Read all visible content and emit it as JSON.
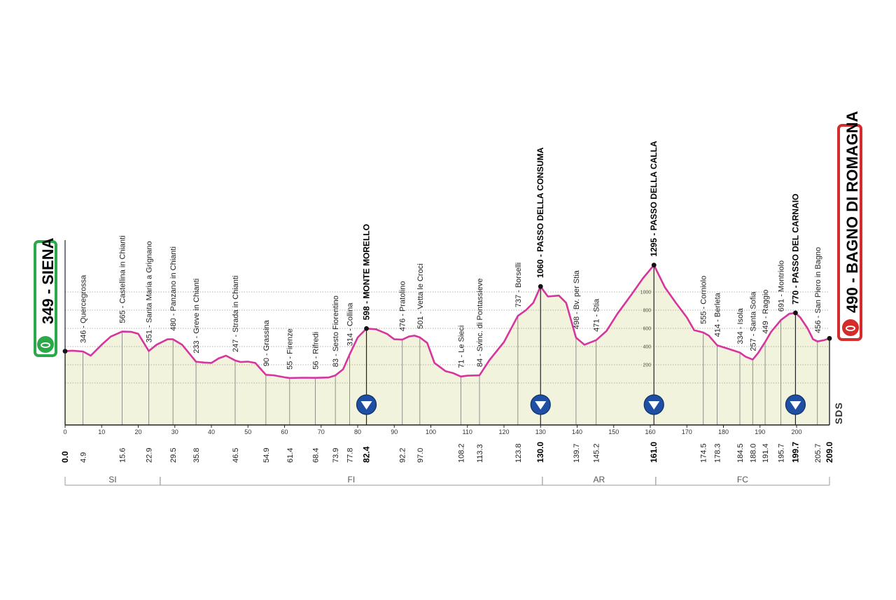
{
  "chart_data": {
    "type": "area",
    "xlim": [
      0,
      209
    ],
    "ylim": [
      0,
      1600
    ],
    "axis_ticks": [
      0,
      10,
      20,
      30,
      40,
      50,
      60,
      70,
      80,
      90,
      100,
      110,
      120,
      130,
      140,
      150,
      160,
      170,
      180,
      190,
      200
    ],
    "altitude_ticks": [
      0,
      200,
      400,
      600,
      800,
      1000
    ],
    "grid": true,
    "fill_color": "#f2f3dc",
    "line_color": "#d7359e",
    "profile": [
      [
        0,
        349
      ],
      [
        2,
        355
      ],
      [
        4.9,
        346
      ],
      [
        7,
        300
      ],
      [
        10,
        420
      ],
      [
        12.5,
        510
      ],
      [
        15.6,
        565
      ],
      [
        18,
        562
      ],
      [
        20,
        540
      ],
      [
        22.9,
        351
      ],
      [
        25,
        420
      ],
      [
        28,
        480
      ],
      [
        29.5,
        480
      ],
      [
        32,
        420
      ],
      [
        35.8,
        233
      ],
      [
        38,
        225
      ],
      [
        40,
        220
      ],
      [
        42,
        270
      ],
      [
        44,
        300
      ],
      [
        46.5,
        247
      ],
      [
        48,
        230
      ],
      [
        50,
        235
      ],
      [
        52,
        220
      ],
      [
        54.9,
        90
      ],
      [
        57,
        85
      ],
      [
        60,
        62
      ],
      [
        61.4,
        55
      ],
      [
        65,
        58
      ],
      [
        68.4,
        56
      ],
      [
        72,
        60
      ],
      [
        73.9,
        83
      ],
      [
        76,
        150
      ],
      [
        77.8,
        314
      ],
      [
        80,
        500
      ],
      [
        82.4,
        598
      ],
      [
        85,
        590
      ],
      [
        88,
        540
      ],
      [
        90,
        480
      ],
      [
        92.2,
        476
      ],
      [
        94,
        510
      ],
      [
        95.5,
        520
      ],
      [
        97,
        501
      ],
      [
        99,
        440
      ],
      [
        101,
        220
      ],
      [
        104,
        130
      ],
      [
        106,
        110
      ],
      [
        108.2,
        71
      ],
      [
        110,
        80
      ],
      [
        113.3,
        84
      ],
      [
        116,
        250
      ],
      [
        120,
        450
      ],
      [
        123.8,
        737
      ],
      [
        126,
        800
      ],
      [
        128,
        880
      ],
      [
        130,
        1060
      ],
      [
        132,
        950
      ],
      [
        135,
        960
      ],
      [
        137,
        880
      ],
      [
        139.7,
        498
      ],
      [
        142,
        420
      ],
      [
        145.2,
        471
      ],
      [
        148,
        570
      ],
      [
        151,
        760
      ],
      [
        155,
        980
      ],
      [
        158,
        1150
      ],
      [
        161,
        1295
      ],
      [
        164,
        1050
      ],
      [
        167,
        880
      ],
      [
        170,
        720
      ],
      [
        172,
        580
      ],
      [
        174.5,
        555
      ],
      [
        176,
        520
      ],
      [
        178.3,
        414
      ],
      [
        181,
        380
      ],
      [
        184.5,
        334
      ],
      [
        186,
        290
      ],
      [
        188,
        257
      ],
      [
        189.5,
        330
      ],
      [
        191.4,
        449
      ],
      [
        193,
        560
      ],
      [
        195.7,
        691
      ],
      [
        198,
        760
      ],
      [
        199.7,
        770
      ],
      [
        201,
        720
      ],
      [
        203,
        600
      ],
      [
        204.5,
        480
      ],
      [
        205.7,
        456
      ],
      [
        207.5,
        470
      ],
      [
        209,
        490
      ]
    ],
    "points": [
      {
        "km": 0.0,
        "km_label": "0.0",
        "alt": 349,
        "label": "",
        "major": true
      },
      {
        "km": 4.9,
        "km_label": "4.9",
        "alt": 346,
        "label": "346 - Quercegrossa",
        "major": false
      },
      {
        "km": 15.6,
        "km_label": "15.6",
        "alt": 565,
        "label": "565 - Castellina in Chianti",
        "major": false
      },
      {
        "km": 22.9,
        "km_label": "22.9",
        "alt": 351,
        "label": "351 - Santa Maria a Grignano",
        "major": false
      },
      {
        "km": 29.5,
        "km_label": "29.5",
        "alt": 480,
        "label": "480 - Panzano in Chianti",
        "major": false
      },
      {
        "km": 35.8,
        "km_label": "35.8",
        "alt": 233,
        "label": "233 - Greve in Chianti",
        "major": false
      },
      {
        "km": 46.5,
        "km_label": "46.5",
        "alt": 247,
        "label": "247 - Strada in Chianti",
        "major": false
      },
      {
        "km": 54.9,
        "km_label": "54.9",
        "alt": 90,
        "label": "90 - Grassina",
        "major": false
      },
      {
        "km": 61.4,
        "km_label": "61.4",
        "alt": 55,
        "label": "55 - Firenze",
        "major": false
      },
      {
        "km": 68.4,
        "km_label": "68.4",
        "alt": 56,
        "label": "56 - Rifredi",
        "major": false
      },
      {
        "km": 73.9,
        "km_label": "73.9",
        "alt": 83,
        "label": "83 - Sesto Fiorentino",
        "major": false
      },
      {
        "km": 77.8,
        "km_label": "77.8",
        "alt": 314,
        "label": "314 - Collina",
        "major": false
      },
      {
        "km": 82.4,
        "km_label": "82.4",
        "alt": 598,
        "label": "598 - MONTE MORELLO",
        "major": true
      },
      {
        "km": 92.2,
        "km_label": "92.2",
        "alt": 476,
        "label": "476 - Pratolino",
        "major": false
      },
      {
        "km": 97.0,
        "km_label": "97.0",
        "alt": 501,
        "label": "501 - Vetta le Croci",
        "major": false
      },
      {
        "km": 108.2,
        "km_label": "108.2",
        "alt": 71,
        "label": "71 - Le Sieci",
        "major": false
      },
      {
        "km": 113.3,
        "km_label": "113.3",
        "alt": 84,
        "label": "84 - Svinc. di Pontassieve",
        "major": false
      },
      {
        "km": 123.8,
        "km_label": "123.8",
        "alt": 737,
        "label": "737 - Borselli",
        "major": false
      },
      {
        "km": 130.0,
        "km_label": "130.0",
        "alt": 1060,
        "label": "1060 - PASSO DELLA CONSUMA",
        "major": true
      },
      {
        "km": 139.7,
        "km_label": "139.7",
        "alt": 498,
        "label": "498 - Bv. per Stia",
        "major": false
      },
      {
        "km": 145.2,
        "km_label": "145.2",
        "alt": 471,
        "label": "471 - Stia",
        "major": false
      },
      {
        "km": 161.0,
        "km_label": "161.0",
        "alt": 1295,
        "label": "1295 - PASSO DELLA CALLA",
        "major": true
      },
      {
        "km": 174.5,
        "km_label": "174.5",
        "alt": 555,
        "label": "555 - Corniolo",
        "major": false
      },
      {
        "km": 178.3,
        "km_label": "178.3",
        "alt": 414,
        "label": "414 - Berleta",
        "major": false
      },
      {
        "km": 184.5,
        "km_label": "184.5",
        "alt": 334,
        "label": "334 - Isola",
        "major": false
      },
      {
        "km": 188.0,
        "km_label": "188.0",
        "alt": 257,
        "label": "257 - Santa Sofia",
        "major": false
      },
      {
        "km": 191.4,
        "km_label": "191.4",
        "alt": 449,
        "label": "449 - Raggio",
        "major": false
      },
      {
        "km": 195.7,
        "km_label": "195.7",
        "alt": 691,
        "label": "691 - Montriolo",
        "major": false
      },
      {
        "km": 199.7,
        "km_label": "199.7",
        "alt": 770,
        "label": "770 - PASSO DEL CARNAIO",
        "major": true
      },
      {
        "km": 205.7,
        "km_label": "205.7",
        "alt": 456,
        "label": "456 - San Piero in Bagno",
        "major": false
      },
      {
        "km": 209.0,
        "km_label": "209.0",
        "alt": 490,
        "label": "",
        "major": true
      }
    ],
    "gpm_km": [
      82.4,
      130.0,
      161.0,
      199.7
    ],
    "provinces": [
      {
        "name": "SI",
        "from": 0,
        "to": 26
      },
      {
        "name": "FI",
        "from": 26,
        "to": 130.5
      },
      {
        "name": "AR",
        "from": 130.5,
        "to": 161.5
      },
      {
        "name": "FC",
        "from": 161.5,
        "to": 209
      }
    ]
  },
  "start": {
    "label": "349 - SIENA",
    "color": "#2aa84a"
  },
  "finish": {
    "label": "490 - BAGNO DI ROMAGNA",
    "color": "#d62b2b"
  },
  "logo_text": "SDS"
}
